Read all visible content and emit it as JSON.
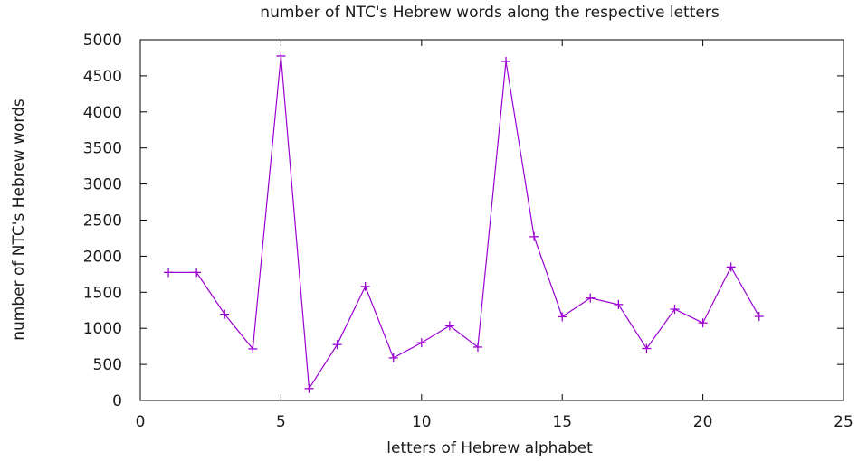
{
  "chart_data": {
    "type": "line",
    "title": "number of NTC's Hebrew words along the respective letters",
    "xlabel": "letters of Hebrew alphabet",
    "ylabel": "number of NTC's Hebrew words",
    "xlim": [
      0,
      25
    ],
    "ylim": [
      0,
      5000
    ],
    "xticks": [
      0,
      5,
      10,
      15,
      20,
      25
    ],
    "yticks": [
      0,
      500,
      1000,
      1500,
      2000,
      2500,
      3000,
      3500,
      4000,
      4500,
      5000
    ],
    "grid": false,
    "series": [
      {
        "color": "#9b00d3",
        "marker": "+",
        "x": [
          1,
          2,
          3,
          4,
          5,
          6,
          7,
          8,
          9,
          10,
          11,
          12,
          13,
          14,
          15,
          16,
          17,
          18,
          19,
          20,
          21,
          22
        ],
        "y": [
          1775,
          1775,
          1195,
          715,
          4775,
          165,
          775,
          1580,
          590,
          800,
          1035,
          740,
          4700,
          2270,
          1160,
          1420,
          1330,
          720,
          1265,
          1075,
          1850,
          1165
        ]
      }
    ]
  }
}
